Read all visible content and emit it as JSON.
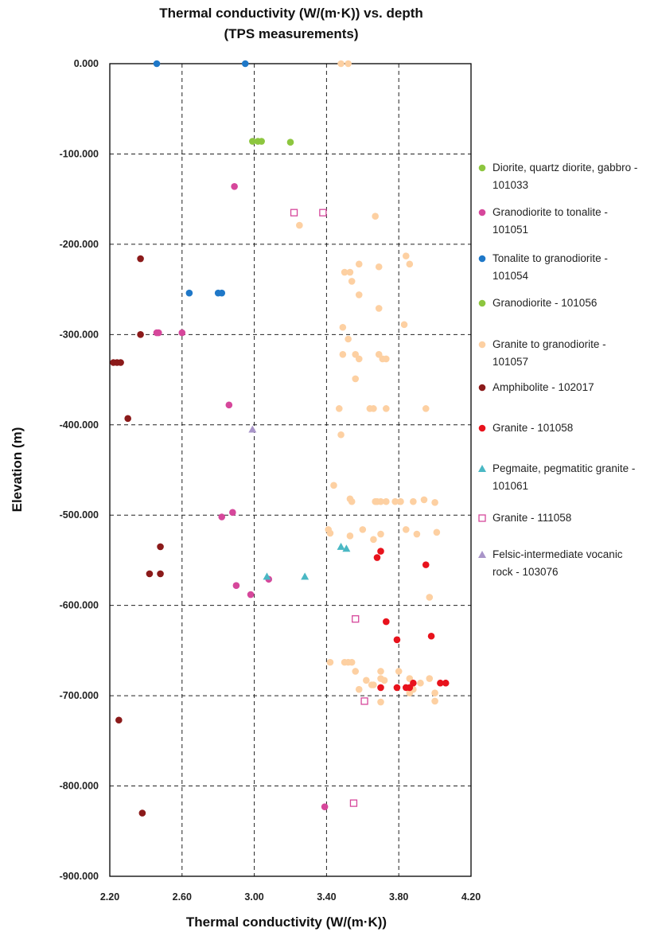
{
  "chart_data": {
    "type": "scatter",
    "title": [
      "Thermal conductivity (W/(m·K)) vs. depth",
      "(TPS measurements)"
    ],
    "xlabel": "Thermal conductivity (W/(m·K))",
    "ylabel": "Elevation (m)",
    "xlim": [
      2.2,
      4.2
    ],
    "ylim": [
      -900,
      0
    ],
    "xticks": [
      2.2,
      2.6,
      3.0,
      3.4,
      3.8,
      4.2
    ],
    "xtick_labels": [
      "2.20",
      "2.60",
      "3.00",
      "3.40",
      "3.80",
      "4.20"
    ],
    "yticks": [
      0,
      -100,
      -200,
      -300,
      -400,
      -500,
      -600,
      -700,
      -800,
      -900
    ],
    "ytick_labels": [
      "0.000",
      "-100.000",
      "-200.000",
      "-300.000",
      "-400.000",
      "-500.000",
      "-600.000",
      "-700.000",
      "-800.000",
      "-900.000"
    ],
    "grid": "dashed",
    "legend_position": "right",
    "series": [
      {
        "name": "Diorite, quartz diorite, gabbro - 101033",
        "legend_lines": [
          "Diorite, quartz diorite, gabbro -",
          "101033"
        ],
        "marker": "circle",
        "color": "#8dc63f",
        "x": [],
        "y": []
      },
      {
        "name": "Granodiorite to tonalite - 101051",
        "legend_lines": [
          "Granodiorite to tonalite -",
          "101051"
        ],
        "marker": "circle",
        "color": "#d6479b",
        "x": [
          2.89,
          2.47,
          2.46,
          2.6,
          2.86,
          2.88,
          2.82,
          2.9,
          2.98,
          3.08,
          3.39
        ],
        "y": [
          -136,
          -298,
          -298,
          -298,
          -378,
          -497,
          -502,
          -578,
          -588,
          -571,
          -823
        ]
      },
      {
        "name": "Tonalite to granodiorite - 101054",
        "legend_lines": [
          "Tonalite to granodiorite -",
          "101054"
        ],
        "marker": "circle",
        "color": "#1f78c8",
        "x": [
          2.46,
          2.95,
          2.64,
          2.8,
          2.82
        ],
        "y": [
          0,
          0,
          -254,
          -254,
          -254
        ]
      },
      {
        "name": "Granodiorite - 101056",
        "legend_lines": [
          "Granodiorite - 101056"
        ],
        "marker": "circle",
        "color": "#8dc63f",
        "x": [
          2.99,
          3.02,
          3.04,
          3.2
        ],
        "y": [
          -86,
          -86,
          -86,
          -87
        ]
      },
      {
        "name": "Granite to granodiorite - 101057",
        "legend_lines": [
          "Granite to granodiorite -",
          "101057"
        ],
        "marker": "circle",
        "color": "#fdd0a2",
        "x": [
          3.48,
          3.52,
          3.67,
          3.25,
          3.84,
          3.86,
          3.58,
          3.69,
          3.5,
          3.53,
          3.54,
          3.58,
          3.69,
          3.83,
          3.49,
          3.52,
          3.49,
          3.56,
          3.58,
          3.69,
          3.71,
          3.73,
          3.56,
          3.47,
          3.64,
          3.66,
          3.73,
          3.95,
          3.48,
          3.44,
          3.53,
          3.54,
          3.67,
          3.68,
          3.7,
          3.73,
          3.78,
          3.81,
          3.88,
          3.94,
          4.0,
          3.41,
          3.42,
          3.53,
          3.6,
          3.66,
          3.7,
          3.84,
          3.9,
          4.01,
          3.97,
          3.42,
          3.5,
          3.52,
          3.54,
          3.56,
          3.7,
          3.62,
          3.66,
          3.72,
          3.8,
          3.86,
          3.92,
          3.97,
          3.58,
          3.65,
          3.7,
          3.88,
          4.0,
          3.86,
          3.7,
          4.0
        ],
        "y": [
          0,
          0,
          -169,
          -179,
          -213,
          -222,
          -222,
          -225,
          -231,
          -231,
          -241,
          -256,
          -271,
          -289,
          -292,
          -305,
          -322,
          -322,
          -327,
          -322,
          -327,
          -327,
          -349,
          -382,
          -382,
          -382,
          -382,
          -382,
          -411,
          -467,
          -482,
          -485,
          -485,
          -485,
          -485,
          -485,
          -485,
          -485,
          -485,
          -483,
          -486,
          -516,
          -520,
          -523,
          -516,
          -527,
          -521,
          -516,
          -521,
          -519,
          -591,
          -663,
          -663,
          -663,
          -663,
          -673,
          -673,
          -683,
          -688,
          -683,
          -673,
          -681,
          -686,
          -681,
          -693,
          -688,
          -707,
          -693,
          -697,
          -697,
          -681,
          -706
        ]
      },
      {
        "name": "Amphibolite - 102017",
        "legend_lines": [
          "Amphibolite - 102017"
        ],
        "marker": "circle",
        "color": "#8b1a1a",
        "x": [
          2.37,
          2.37,
          2.22,
          2.24,
          2.26,
          2.3,
          2.48,
          2.42,
          2.48,
          2.25,
          2.38
        ],
        "y": [
          -216,
          -300,
          -331,
          -331,
          -331,
          -393,
          -535,
          -565,
          -565,
          -727,
          -830
        ]
      },
      {
        "name": "Granite - 101058",
        "legend_lines": [
          "Granite - 101058"
        ],
        "marker": "circle",
        "color": "#e8121c",
        "x": [
          3.7,
          3.68,
          3.95,
          3.73,
          3.79,
          3.98,
          3.7,
          3.79,
          3.84,
          3.86,
          3.88,
          4.03,
          4.06
        ],
        "y": [
          -540,
          -547,
          -555,
          -618,
          -638,
          -634,
          -691,
          -691,
          -691,
          -691,
          -686,
          -686,
          -686
        ]
      },
      {
        "name": "Pegmaite, pegmatitic granite - 101061",
        "legend_lines": [
          "Pegmaite, pegmatitic granite -",
          "101061"
        ],
        "marker": "triangle",
        "color": "#4ab8c4",
        "x": [
          3.07,
          3.28,
          3.48,
          3.51
        ],
        "y": [
          -568,
          -568,
          -535,
          -537
        ]
      },
      {
        "name": "Granite - 111058",
        "legend_lines": [
          "Granite - 111058"
        ],
        "marker": "square-open",
        "color": "#d6479b",
        "x": [
          3.22,
          3.38,
          3.56,
          3.61,
          3.55
        ],
        "y": [
          -165,
          -165,
          -615,
          -706,
          -819
        ]
      },
      {
        "name": "Felsic-intermediate vocanic rock - 103076",
        "legend_lines": [
          "Felsic-intermediate vocanic",
          "rock - 103076"
        ],
        "marker": "triangle",
        "color": "#a995c9",
        "x": [
          2.99
        ],
        "y": [
          -405
        ]
      }
    ]
  }
}
